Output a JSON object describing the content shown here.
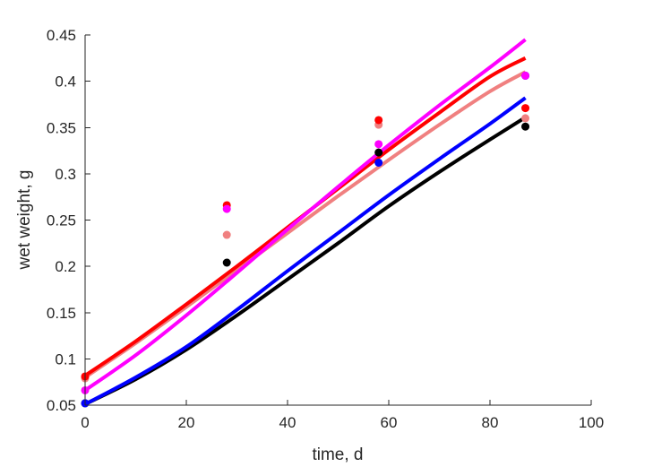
{
  "chart_data": {
    "type": "line",
    "xlabel": "time, d",
    "ylabel": "wet weight, g",
    "xlim": [
      0,
      100
    ],
    "ylim": [
      0.05,
      0.45
    ],
    "x_ticks": [
      0,
      20,
      40,
      60,
      80,
      100
    ],
    "x_tick_labels": [
      "0",
      "20",
      "40",
      "60",
      "80",
      "100"
    ],
    "y_ticks": [
      0.05,
      0.1,
      0.15,
      0.2,
      0.25,
      0.3,
      0.35,
      0.4,
      0.45
    ],
    "y_tick_labels": [
      "0.05",
      "0.1",
      "0.15",
      "0.2",
      "0.25",
      "0.3",
      "0.35",
      "0.4",
      "0.45"
    ],
    "grid": false,
    "legend": "none",
    "series": [
      {
        "color": "#000000",
        "curve": {
          "x": [
            0,
            10,
            20,
            30,
            40,
            50,
            60,
            70,
            80,
            87
          ],
          "y": [
            0.051,
            0.078,
            0.11,
            0.147,
            0.186,
            0.225,
            0.265,
            0.302,
            0.337,
            0.361
          ]
        },
        "points": {
          "x": [
            0,
            28,
            58,
            87
          ],
          "y": [
            0.052,
            0.204,
            0.323,
            0.351
          ]
        }
      },
      {
        "color": "#0000ff",
        "curve": {
          "x": [
            0,
            10,
            20,
            30,
            40,
            50,
            60,
            70,
            80,
            87
          ],
          "y": [
            0.051,
            0.08,
            0.113,
            0.153,
            0.195,
            0.236,
            0.277,
            0.316,
            0.354,
            0.382
          ]
        },
        "points": {
          "x": [
            0,
            58,
            87
          ],
          "y": [
            0.052,
            0.312,
            0.406
          ]
        }
      },
      {
        "color": "#f08080",
        "curve": {
          "x": [
            0,
            10,
            20,
            30,
            40,
            50,
            60,
            70,
            80,
            87
          ],
          "y": [
            0.08,
            0.117,
            0.156,
            0.196,
            0.236,
            0.276,
            0.315,
            0.353,
            0.389,
            0.41
          ]
        },
        "points": {
          "x": [
            0,
            28,
            58,
            87
          ],
          "y": [
            0.079,
            0.234,
            0.353,
            0.36
          ]
        }
      },
      {
        "color": "#ff0000",
        "curve": {
          "x": [
            0,
            10,
            20,
            30,
            40,
            50,
            60,
            70,
            80,
            87
          ],
          "y": [
            0.082,
            0.119,
            0.159,
            0.2,
            0.242,
            0.284,
            0.326,
            0.366,
            0.405,
            0.425
          ]
        },
        "points": {
          "x": [
            0,
            28,
            58,
            87
          ],
          "y": [
            0.081,
            0.266,
            0.358,
            0.371
          ]
        }
      },
      {
        "color": "#ff00ff",
        "curve": {
          "x": [
            0,
            10,
            20,
            30,
            40,
            50,
            60,
            70,
            80,
            87
          ],
          "y": [
            0.066,
            0.104,
            0.147,
            0.193,
            0.24,
            0.286,
            0.331,
            0.374,
            0.415,
            0.445
          ]
        },
        "points": {
          "x": [
            0,
            28,
            58,
            87
          ],
          "y": [
            0.066,
            0.262,
            0.332,
            0.406
          ]
        }
      }
    ]
  }
}
